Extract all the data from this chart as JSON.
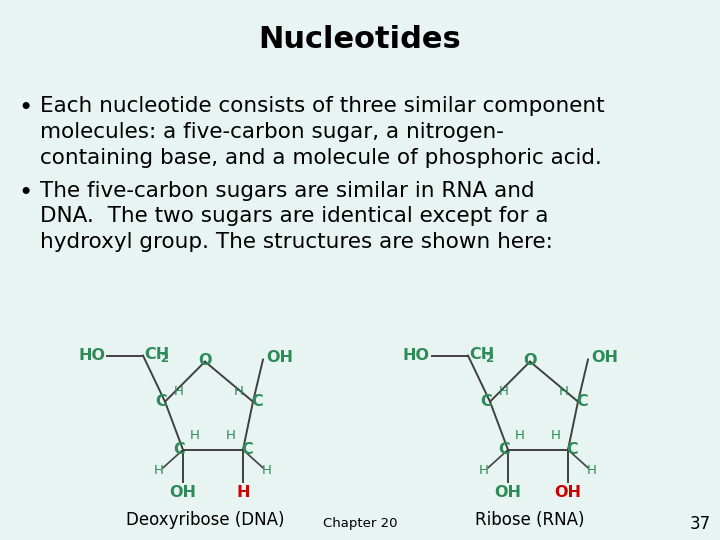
{
  "title": "Nucleotides",
  "title_bg": "#cce8e4",
  "body_bg": "#e8f4f2",
  "green": "#2e8b57",
  "red": "#cc0000",
  "dark": "#404040",
  "line_color": "#2288aa",
  "bullet1_line1": "Each nucleotide consists of three similar component",
  "bullet1_line2": "molecules: a five-carbon sugar, a nitrogen-",
  "bullet1_line3": "containing base, and a molecule of phosphoric acid.",
  "bullet2_line1": "The five-carbon sugars are similar in RNA and",
  "bullet2_line2": "DNA.  The two sugars are identical except for a",
  "bullet2_line3": "hydroxyl group. The structures are shown here:",
  "label1": "Deoxyribose (DNA)",
  "label2": "Ribose (RNA)",
  "chapter": "Chapter 20",
  "page": "37"
}
